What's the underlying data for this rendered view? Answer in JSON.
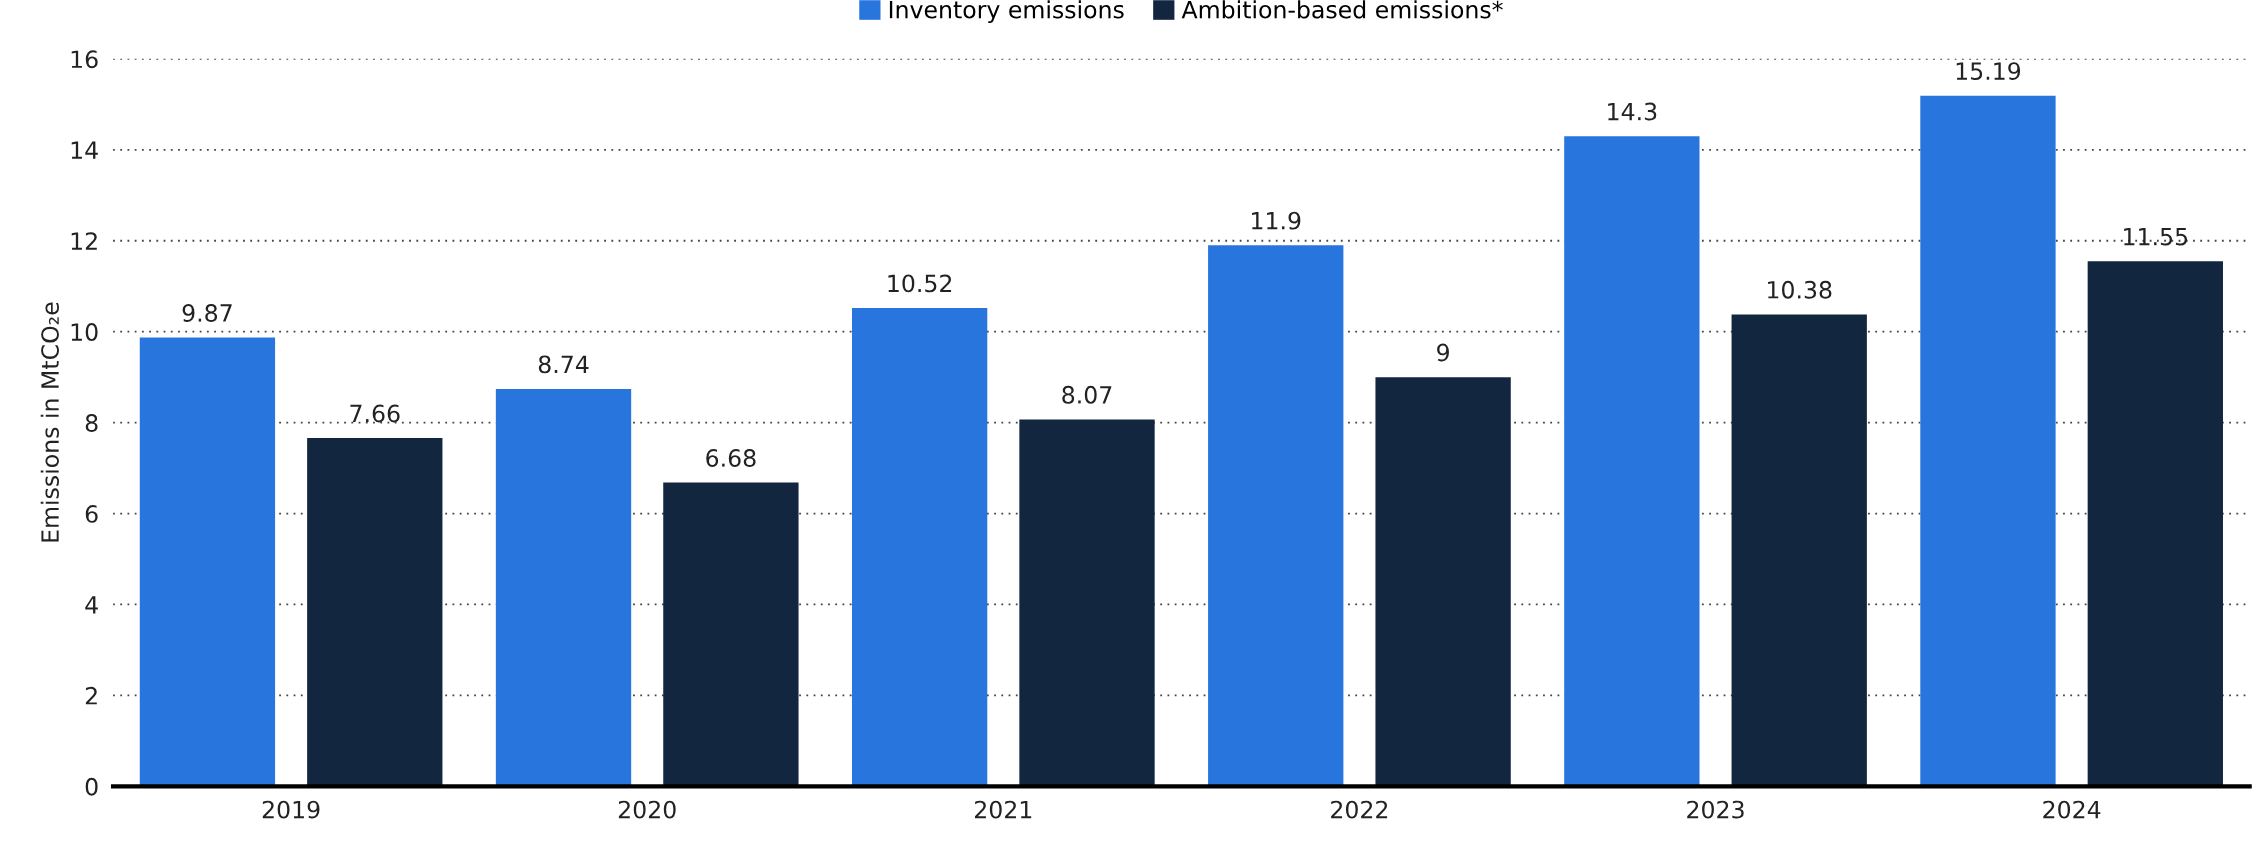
{
  "chart_data": {
    "type": "bar",
    "ylabel": "Emissions in MtCO₂e",
    "categories": [
      "2019",
      "2020",
      "2021",
      "2022",
      "2023",
      "2024"
    ],
    "series": [
      {
        "name": "Inventory emissions",
        "color": "#2876dd",
        "values": [
          9.87,
          8.74,
          10.52,
          11.9,
          14.3,
          15.19
        ]
      },
      {
        "name": "Ambition-based emissions*",
        "color": "#12263f",
        "values": [
          7.66,
          6.68,
          8.07,
          9,
          10.38,
          11.55
        ]
      }
    ],
    "ylim": [
      0,
      16
    ],
    "yticks": [
      0,
      2,
      4,
      6,
      8,
      10,
      12,
      14,
      16
    ],
    "grid": "y",
    "legend": "top",
    "data_labels": true
  }
}
